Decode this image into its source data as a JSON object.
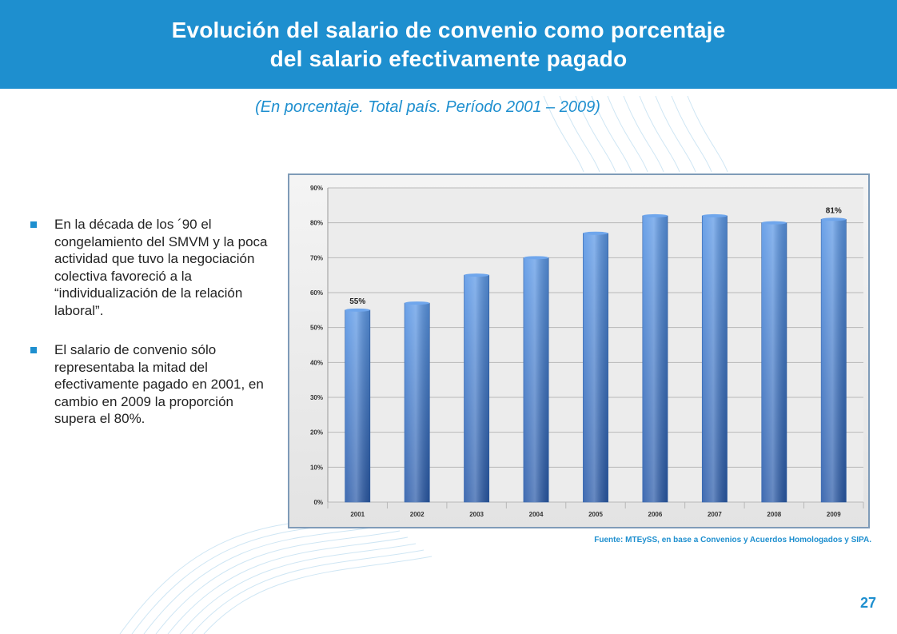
{
  "header": {
    "title_line1": "Evolución del salario de convenio como porcentaje",
    "title_line2": "del salario efectivamente pagado"
  },
  "subtitle": "(En porcentaje. Total país. Período 2001 – 2009)",
  "bullets": [
    {
      "text": "En la década de los ´90 el congelamiento del SMVM y la poca actividad que tuvo la negociación colectiva favoreció a la “individualización de la relación laboral”."
    },
    {
      "text": "El salario de convenio sólo representaba la mitad del efectivamente pagado en 2001, en cambio en 2009 la proporción supera el 80%."
    }
  ],
  "source": "Fuente: MTEySS, en base a Convenios y Acuerdos Homologados y SIPA.",
  "page_number": "27",
  "colors": {
    "brand": "#1e8fcf",
    "bar_top": "#4f8fe0",
    "bar_bottom": "#2a5aa8"
  },
  "chart_data": {
    "type": "bar",
    "categories": [
      "2001",
      "2002",
      "2003",
      "2004",
      "2005",
      "2006",
      "2007",
      "2008",
      "2009"
    ],
    "values": [
      55,
      57,
      65,
      70,
      77,
      82,
      82,
      80,
      81
    ],
    "data_labels": {
      "2001": "55%",
      "2009": "81%"
    },
    "yticks": [
      "0%",
      "10%",
      "20%",
      "30%",
      "40%",
      "50%",
      "60%",
      "70%",
      "80%",
      "90%"
    ],
    "ylim": [
      0,
      90
    ],
    "grid": true
  }
}
